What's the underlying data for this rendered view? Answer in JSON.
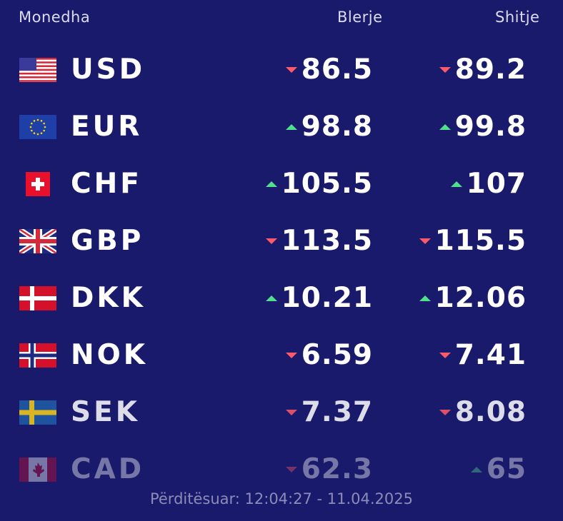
{
  "header": {
    "currency": "Monedha",
    "buy": "Blerje",
    "sell": "Shitje"
  },
  "rows": [
    {
      "code": "USD",
      "buy": "86.5",
      "buy_trend": "down",
      "sell": "89.2",
      "sell_trend": "down"
    },
    {
      "code": "EUR",
      "buy": "98.8",
      "buy_trend": "up",
      "sell": "99.8",
      "sell_trend": "up"
    },
    {
      "code": "CHF",
      "buy": "105.5",
      "buy_trend": "up",
      "sell": "107",
      "sell_trend": "up"
    },
    {
      "code": "GBP",
      "buy": "113.5",
      "buy_trend": "down",
      "sell": "115.5",
      "sell_trend": "down"
    },
    {
      "code": "DKK",
      "buy": "10.21",
      "buy_trend": "up",
      "sell": "12.06",
      "sell_trend": "up"
    },
    {
      "code": "NOK",
      "buy": "6.59",
      "buy_trend": "down",
      "sell": "7.41",
      "sell_trend": "down"
    },
    {
      "code": "SEK",
      "buy": "7.37",
      "buy_trend": "down",
      "sell": "8.08",
      "sell_trend": "down"
    },
    {
      "code": "CAD",
      "buy": "62.3",
      "buy_trend": "down",
      "sell": "65",
      "sell_trend": "up"
    }
  ],
  "footer": "Përditësuar: 12:04:27 - 11.04.2025"
}
